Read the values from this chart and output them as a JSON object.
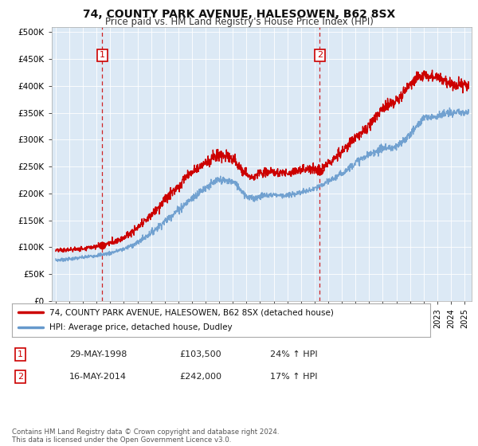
{
  "title": "74, COUNTY PARK AVENUE, HALESOWEN, B62 8SX",
  "subtitle": "Price paid vs. HM Land Registry's House Price Index (HPI)",
  "title_fontsize": 10,
  "subtitle_fontsize": 8.5,
  "ylabel_ticks": [
    "£0",
    "£50K",
    "£100K",
    "£150K",
    "£200K",
    "£250K",
    "£300K",
    "£350K",
    "£400K",
    "£450K",
    "£500K"
  ],
  "ytick_values": [
    0,
    50000,
    100000,
    150000,
    200000,
    250000,
    300000,
    350000,
    400000,
    450000,
    500000
  ],
  "ylim": [
    0,
    510000
  ],
  "xlim_start": 1994.7,
  "xlim_end": 2025.5,
  "sale1_x": 1998.41,
  "sale1_y": 103500,
  "sale1_label": "1",
  "sale1_date": "29-MAY-1998",
  "sale1_price": "£103,500",
  "sale1_hpi": "24% ↑ HPI",
  "sale2_x": 2014.37,
  "sale2_y": 242000,
  "sale2_label": "2",
  "sale2_date": "16-MAY-2014",
  "sale2_price": "£242,000",
  "sale2_hpi": "17% ↑ HPI",
  "line_color_property": "#cc0000",
  "line_color_hpi": "#6699cc",
  "vline_color": "#cc0000",
  "dot_color": "#cc0000",
  "chart_bg": "#dce9f5",
  "legend_label1": "74, COUNTY PARK AVENUE, HALESOWEN, B62 8SX (detached house)",
  "legend_label2": "HPI: Average price, detached house, Dudley",
  "footer": "Contains HM Land Registry data © Crown copyright and database right 2024.\nThis data is licensed under the Open Government Licence v3.0.",
  "background_color": "#ffffff",
  "grid_color": "#ffffff"
}
